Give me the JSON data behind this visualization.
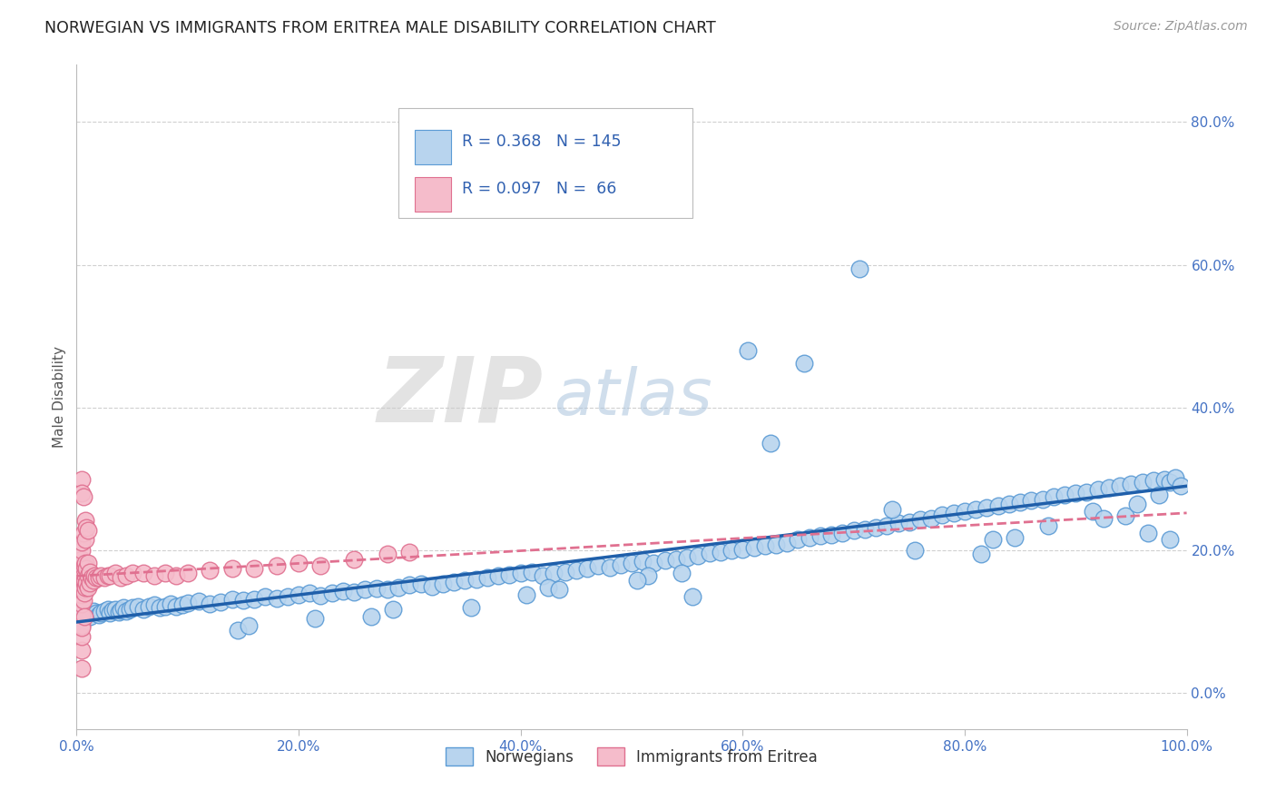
{
  "title": "NORWEGIAN VS IMMIGRANTS FROM ERITREA MALE DISABILITY CORRELATION CHART",
  "source": "Source: ZipAtlas.com",
  "ylabel": "Male Disability",
  "xmin": 0.0,
  "xmax": 1.0,
  "ymin": -0.05,
  "ymax": 0.88,
  "right_yticks": [
    0.0,
    0.2,
    0.4,
    0.6,
    0.8
  ],
  "right_ytick_labels": [
    "0.0%",
    "20.0%",
    "40.0%",
    "60.0%",
    "80.0%"
  ],
  "xticks": [
    0.0,
    0.2,
    0.4,
    0.6,
    0.8,
    1.0
  ],
  "xtick_labels": [
    "0.0%",
    "20.0%",
    "40.0%",
    "60.0%",
    "80.0%",
    "100.0%"
  ],
  "background_color": "#ffffff",
  "grid_color": "#d0d0d0",
  "norwegian_color": "#b8d4ee",
  "norwegian_edge_color": "#5b9bd5",
  "eritrea_color": "#f5bccb",
  "eritrea_edge_color": "#e07090",
  "trend_norwegian_color": "#1f5faa",
  "trend_eritrea_color": "#e07090",
  "R_norwegian": 0.368,
  "N_norwegian": 145,
  "R_eritrea": 0.097,
  "N_eritrea": 66,
  "legend_labels": [
    "Norwegians",
    "Immigrants from Eritrea"
  ],
  "nor_x": [
    0.005,
    0.008,
    0.01,
    0.012,
    0.015,
    0.018,
    0.02,
    0.022,
    0.025,
    0.028,
    0.03,
    0.032,
    0.035,
    0.038,
    0.04,
    0.042,
    0.045,
    0.048,
    0.05,
    0.055,
    0.06,
    0.065,
    0.07,
    0.075,
    0.08,
    0.085,
    0.09,
    0.095,
    0.1,
    0.11,
    0.12,
    0.13,
    0.14,
    0.15,
    0.16,
    0.17,
    0.18,
    0.19,
    0.2,
    0.21,
    0.22,
    0.23,
    0.24,
    0.25,
    0.26,
    0.27,
    0.28,
    0.29,
    0.3,
    0.31,
    0.32,
    0.33,
    0.34,
    0.35,
    0.36,
    0.37,
    0.38,
    0.39,
    0.4,
    0.41,
    0.42,
    0.43,
    0.44,
    0.45,
    0.46,
    0.47,
    0.48,
    0.49,
    0.5,
    0.51,
    0.52,
    0.53,
    0.54,
    0.55,
    0.56,
    0.57,
    0.58,
    0.59,
    0.6,
    0.61,
    0.62,
    0.63,
    0.64,
    0.65,
    0.66,
    0.67,
    0.68,
    0.69,
    0.7,
    0.71,
    0.72,
    0.73,
    0.74,
    0.75,
    0.76,
    0.77,
    0.78,
    0.79,
    0.8,
    0.81,
    0.82,
    0.83,
    0.84,
    0.85,
    0.86,
    0.87,
    0.88,
    0.89,
    0.9,
    0.91,
    0.92,
    0.93,
    0.94,
    0.95,
    0.96,
    0.97,
    0.98,
    0.985,
    0.99,
    0.995,
    0.215,
    0.355,
    0.425,
    0.515,
    0.605,
    0.655,
    0.755,
    0.825,
    0.915,
    0.965,
    0.145,
    0.265,
    0.405,
    0.505,
    0.545,
    0.705,
    0.815,
    0.875,
    0.945,
    0.975,
    0.155,
    0.285,
    0.435,
    0.555,
    0.625,
    0.735,
    0.845,
    0.925,
    0.955,
    0.985
  ],
  "nor_y": [
    0.105,
    0.11,
    0.112,
    0.108,
    0.115,
    0.112,
    0.11,
    0.113,
    0.115,
    0.118,
    0.112,
    0.116,
    0.118,
    0.114,
    0.116,
    0.12,
    0.115,
    0.118,
    0.12,
    0.122,
    0.118,
    0.121,
    0.124,
    0.12,
    0.122,
    0.125,
    0.122,
    0.124,
    0.127,
    0.129,
    0.125,
    0.128,
    0.132,
    0.13,
    0.132,
    0.135,
    0.133,
    0.135,
    0.138,
    0.14,
    0.137,
    0.14,
    0.143,
    0.142,
    0.145,
    0.147,
    0.146,
    0.148,
    0.152,
    0.153,
    0.15,
    0.153,
    0.156,
    0.158,
    0.16,
    0.162,
    0.164,
    0.166,
    0.168,
    0.17,
    0.165,
    0.168,
    0.17,
    0.172,
    0.175,
    0.178,
    0.176,
    0.18,
    0.182,
    0.185,
    0.183,
    0.186,
    0.188,
    0.19,
    0.193,
    0.196,
    0.198,
    0.2,
    0.202,
    0.204,
    0.206,
    0.208,
    0.21,
    0.215,
    0.218,
    0.22,
    0.222,
    0.225,
    0.228,
    0.23,
    0.232,
    0.235,
    0.238,
    0.24,
    0.243,
    0.245,
    0.25,
    0.252,
    0.255,
    0.258,
    0.26,
    0.262,
    0.265,
    0.268,
    0.27,
    0.272,
    0.275,
    0.278,
    0.28,
    0.282,
    0.285,
    0.288,
    0.29,
    0.293,
    0.295,
    0.298,
    0.3,
    0.295,
    0.302,
    0.29,
    0.105,
    0.12,
    0.148,
    0.165,
    0.48,
    0.462,
    0.2,
    0.215,
    0.255,
    0.225,
    0.088,
    0.108,
    0.138,
    0.158,
    0.168,
    0.595,
    0.195,
    0.235,
    0.248,
    0.278,
    0.095,
    0.118,
    0.145,
    0.135,
    0.35,
    0.258,
    0.218,
    0.245,
    0.265,
    0.215
  ],
  "eri_x": [
    0.005,
    0.005,
    0.005,
    0.005,
    0.005,
    0.005,
    0.005,
    0.005,
    0.005,
    0.005,
    0.005,
    0.005,
    0.006,
    0.006,
    0.006,
    0.006,
    0.007,
    0.007,
    0.007,
    0.008,
    0.008,
    0.008,
    0.008,
    0.009,
    0.009,
    0.01,
    0.01,
    0.01,
    0.012,
    0.012,
    0.014,
    0.015,
    0.016,
    0.018,
    0.02,
    0.022,
    0.025,
    0.028,
    0.03,
    0.035,
    0.04,
    0.045,
    0.05,
    0.06,
    0.07,
    0.08,
    0.09,
    0.1,
    0.12,
    0.14,
    0.16,
    0.18,
    0.2,
    0.22,
    0.25,
    0.28,
    0.3,
    0.005,
    0.005,
    0.005,
    0.005,
    0.006,
    0.007,
    0.008,
    0.009,
    0.01
  ],
  "eri_y": [
    0.06,
    0.08,
    0.095,
    0.11,
    0.125,
    0.138,
    0.15,
    0.162,
    0.175,
    0.188,
    0.2,
    0.212,
    0.13,
    0.145,
    0.165,
    0.225,
    0.14,
    0.158,
    0.178,
    0.148,
    0.165,
    0.182,
    0.215,
    0.155,
    0.175,
    0.148,
    0.165,
    0.182,
    0.155,
    0.17,
    0.162,
    0.158,
    0.165,
    0.162,
    0.162,
    0.165,
    0.162,
    0.165,
    0.165,
    0.168,
    0.162,
    0.165,
    0.168,
    0.168,
    0.165,
    0.168,
    0.165,
    0.168,
    0.172,
    0.175,
    0.175,
    0.178,
    0.182,
    0.178,
    0.188,
    0.195,
    0.198,
    0.3,
    0.28,
    0.092,
    0.035,
    0.275,
    0.108,
    0.242,
    0.232,
    0.228
  ]
}
